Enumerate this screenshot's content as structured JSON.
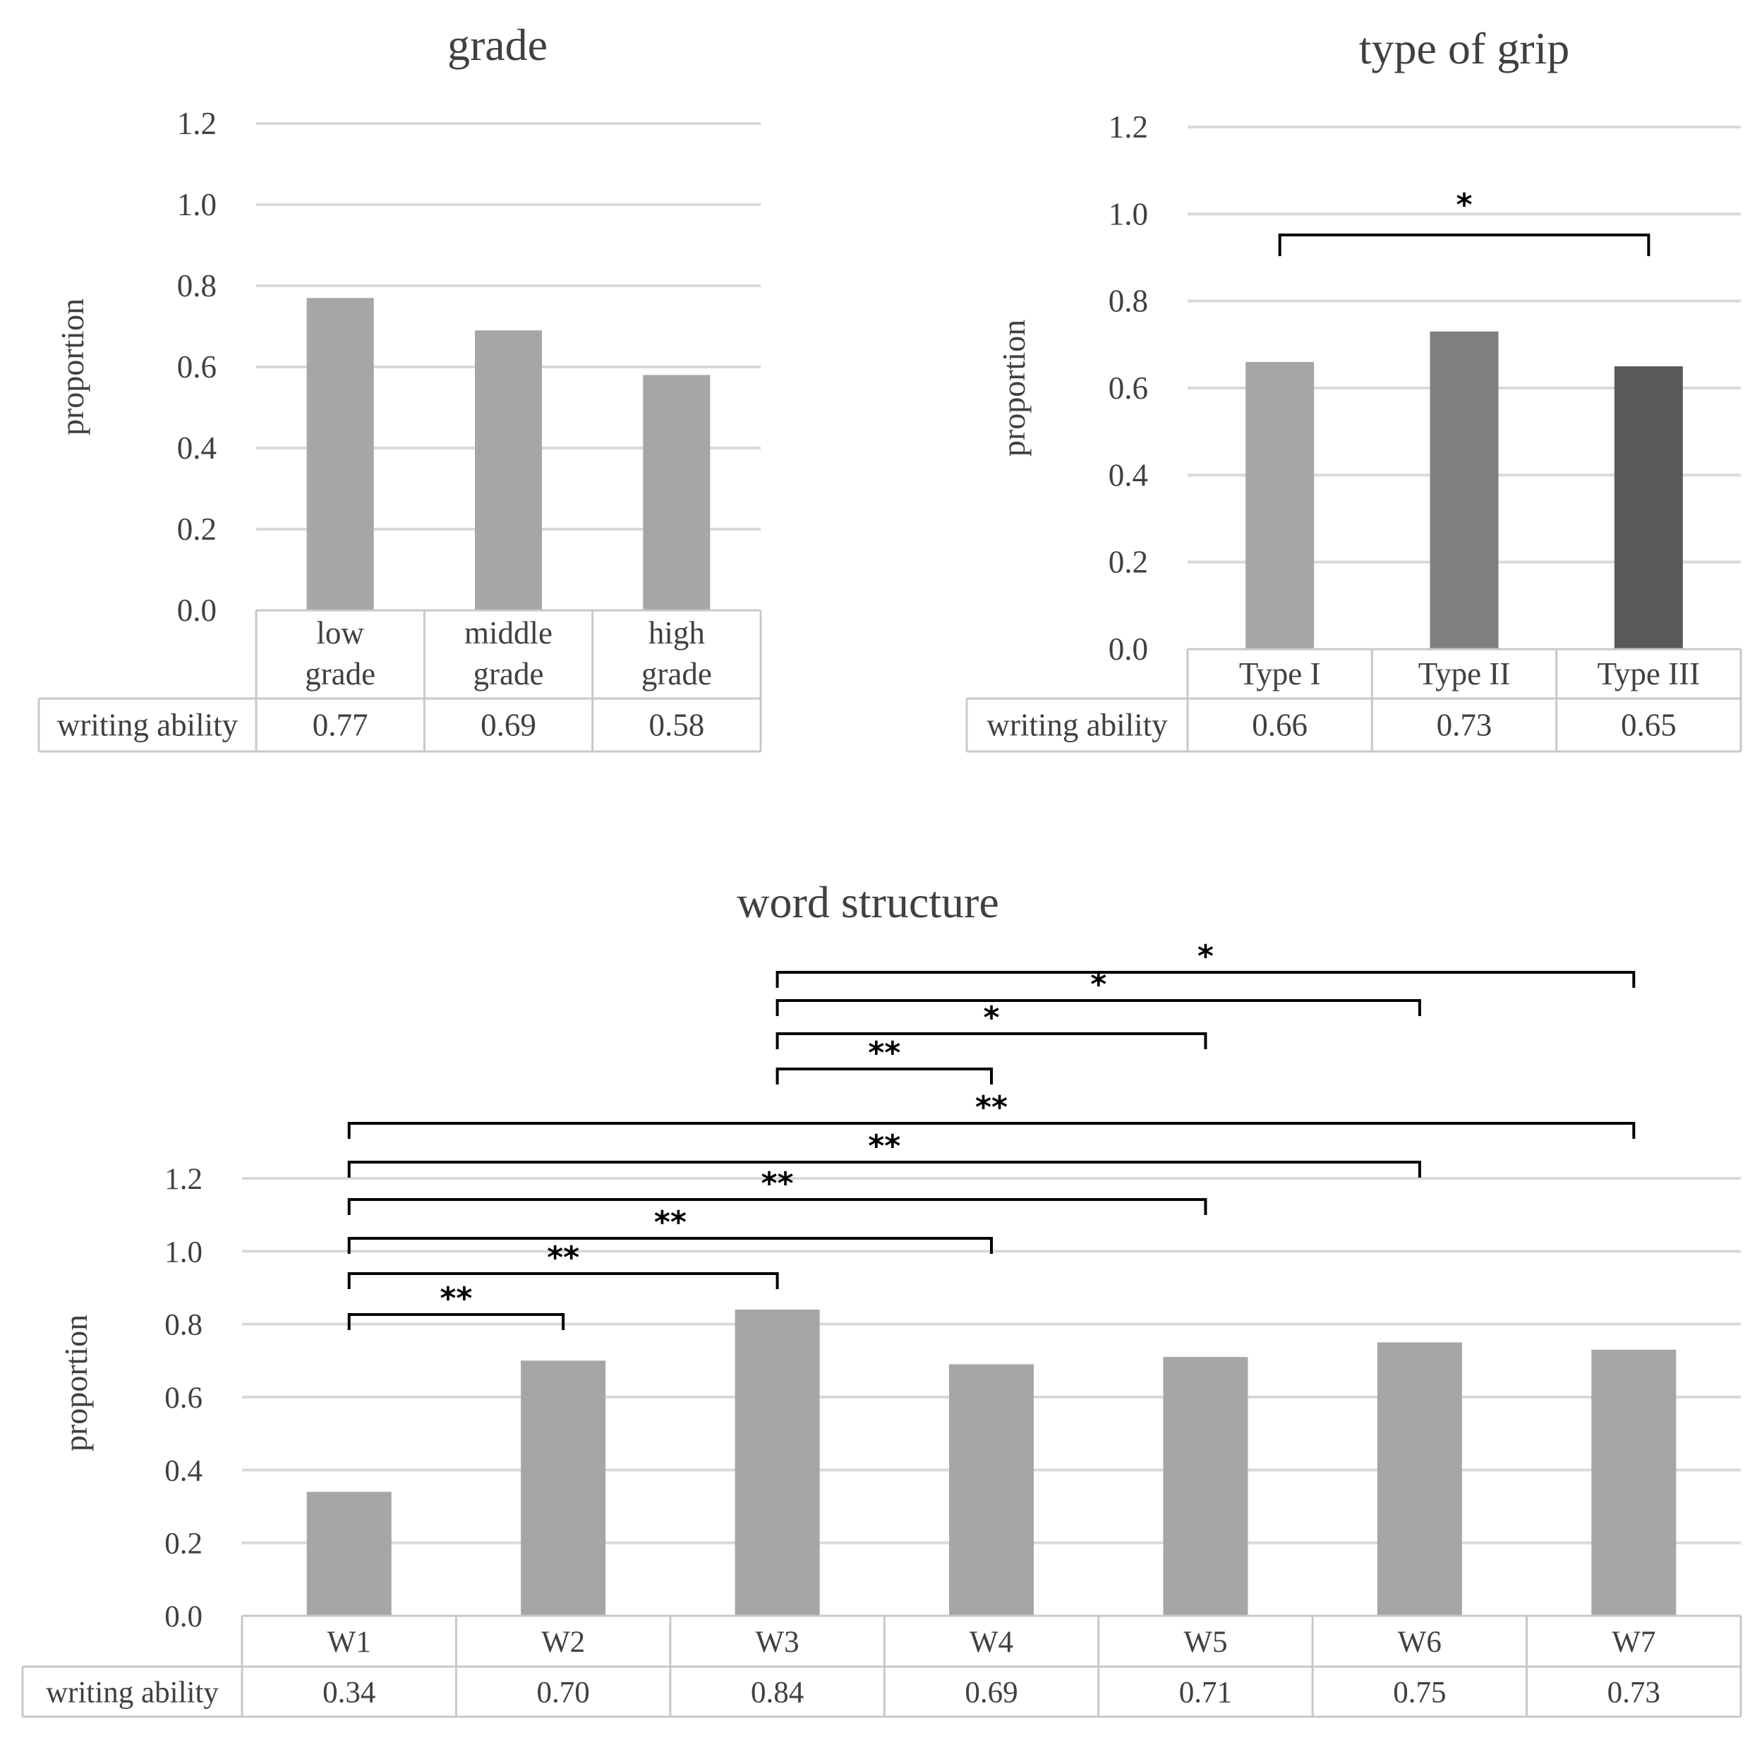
{
  "chart_data": [
    {
      "type": "bar",
      "title": "grade",
      "ylabel": "proportion",
      "xlabel": "",
      "ylim": [
        0,
        1.2
      ],
      "yticks": [
        "0.0",
        "0.2",
        "0.4",
        "0.6",
        "0.8",
        "1.0",
        "1.2"
      ],
      "grid": true,
      "categories": [
        [
          "low",
          "grade"
        ],
        [
          "middle",
          "grade"
        ],
        [
          "high",
          "grade"
        ]
      ],
      "series": [
        {
          "name": "writing ability",
          "values": [
            0.77,
            0.69,
            0.58
          ],
          "value_labels": [
            "0.77",
            "0.69",
            "0.58"
          ]
        }
      ],
      "bar_colors": [
        "#a6a6a6",
        "#a6a6a6",
        "#a6a6a6"
      ],
      "data_table": true,
      "significance": []
    },
    {
      "type": "bar",
      "title": "type of grip",
      "ylabel": "proportion",
      "xlabel": "",
      "ylim": [
        0,
        1.2
      ],
      "yticks": [
        "0.0",
        "0.2",
        "0.4",
        "0.6",
        "0.8",
        "1.0",
        "1.2"
      ],
      "grid": true,
      "categories": [
        [
          "Type I"
        ],
        [
          "Type II"
        ],
        [
          "Type III"
        ]
      ],
      "series": [
        {
          "name": "writing ability",
          "values": [
            0.66,
            0.73,
            0.65
          ],
          "value_labels": [
            "0.66",
            "0.73",
            "0.65"
          ]
        }
      ],
      "bar_colors": [
        "#a6a6a6",
        "#7f7f7f",
        "#595959"
      ],
      "data_table": true,
      "significance": [
        {
          "from": 0,
          "to": 2,
          "label": "*"
        }
      ]
    },
    {
      "type": "bar",
      "title": "word structure",
      "ylabel": "proportion",
      "xlabel": "",
      "ylim": [
        0,
        1.2
      ],
      "yticks": [
        "0.0",
        "0.2",
        "0.4",
        "0.6",
        "0.8",
        "1.0",
        "1.2"
      ],
      "grid": true,
      "categories": [
        [
          "W1"
        ],
        [
          "W2"
        ],
        [
          "W3"
        ],
        [
          "W4"
        ],
        [
          "W5"
        ],
        [
          "W6"
        ],
        [
          "W7"
        ]
      ],
      "series": [
        {
          "name": "writing ability",
          "values": [
            0.34,
            0.7,
            0.84,
            0.69,
            0.71,
            0.75,
            0.73
          ],
          "value_labels": [
            "0.34",
            "0.70",
            "0.84",
            "0.69",
            "0.71",
            "0.75",
            "0.73"
          ]
        }
      ],
      "bar_colors": [
        "#a6a6a6",
        "#a6a6a6",
        "#a6a6a6",
        "#a6a6a6",
        "#a6a6a6",
        "#a6a6a6",
        "#a6a6a6"
      ],
      "data_table": true,
      "significance": [
        {
          "from": 2,
          "to": 6,
          "label": "*"
        },
        {
          "from": 2,
          "to": 5,
          "label": "*"
        },
        {
          "from": 2,
          "to": 4,
          "label": "*"
        },
        {
          "from": 2,
          "to": 3,
          "label": "**"
        },
        {
          "from": 0,
          "to": 6,
          "label": "**"
        },
        {
          "from": 0,
          "to": 5,
          "label": "**"
        },
        {
          "from": 0,
          "to": 4,
          "label": "**"
        },
        {
          "from": 0,
          "to": 3,
          "label": "**"
        },
        {
          "from": 0,
          "to": 2,
          "label": "**"
        },
        {
          "from": 0,
          "to": 1,
          "label": "**"
        }
      ]
    }
  ],
  "colors": {
    "text": "#404040",
    "grid": "#d9d9d9",
    "table_border": "#c8c8c8",
    "bracket": "#000000"
  }
}
